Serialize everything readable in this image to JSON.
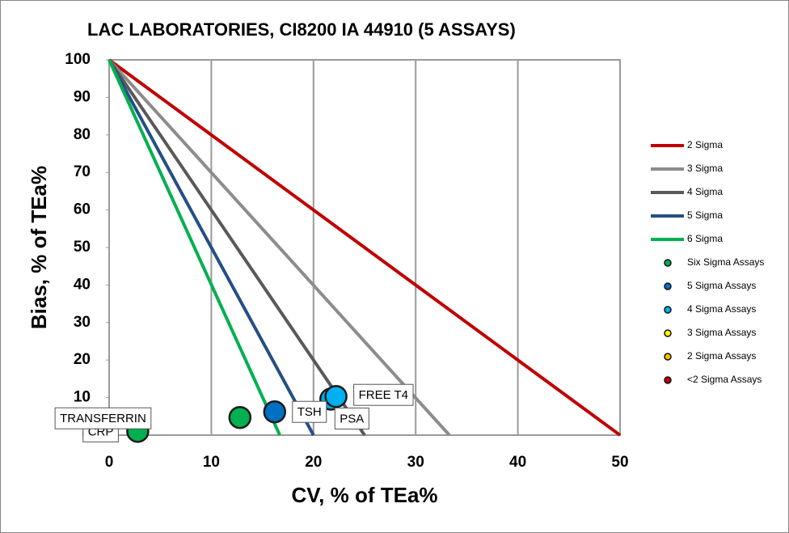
{
  "chart_data": {
    "type": "opspecs",
    "title": "LAC LABORATORIES, CI8200 IA 44910 (5 ASSAYS)",
    "x_label": "CV, % of TEa%",
    "y_label": "Bias, % of TEa%",
    "xlim": [
      0,
      50
    ],
    "xticks": [
      0,
      10,
      20,
      30,
      40,
      50
    ],
    "ylim": [
      0,
      100
    ],
    "yticks": [
      0,
      10,
      20,
      30,
      40,
      50,
      60,
      70,
      80,
      90,
      100
    ],
    "grid": "x",
    "legend": "right",
    "series": [
      {
        "name": "2 Sigma",
        "kind": "line",
        "color": "#c00000",
        "x": [
          0,
          50
        ],
        "values": [
          100,
          0
        ]
      },
      {
        "name": "3 Sigma",
        "kind": "line",
        "color": "#8c8c8c",
        "x": [
          0,
          33.3
        ],
        "values": [
          100,
          0
        ]
      },
      {
        "name": "4 Sigma",
        "kind": "line",
        "color": "#595959",
        "x": [
          0,
          25
        ],
        "values": [
          100,
          0
        ]
      },
      {
        "name": "5 Sigma",
        "kind": "line",
        "color": "#254e85",
        "x": [
          0,
          20
        ],
        "values": [
          100,
          0
        ]
      },
      {
        "name": "6 Sigma",
        "kind": "line",
        "color": "#00b050",
        "x": [
          0,
          16.7
        ],
        "values": [
          100,
          0
        ]
      },
      {
        "name": "Six Sigma Assays",
        "kind": "scatter",
        "color": "#00b050",
        "x": [
          2.8,
          12.8
        ],
        "values": [
          1,
          4.7
        ],
        "labels": [
          "CRP",
          "TRANSFERRIN"
        ]
      },
      {
        "name": "5 Sigma Assays",
        "kind": "scatter",
        "color": "#0070c0",
        "x": [
          16.2
        ],
        "values": [
          6.2
        ],
        "labels": [
          "TSH"
        ]
      },
      {
        "name": "4 Sigma Assays",
        "kind": "scatter",
        "color": "#00b0f0",
        "x": [
          21.7,
          22.2
        ],
        "values": [
          9.6,
          10.3
        ],
        "labels": [
          "PSA",
          "FREE T4"
        ]
      },
      {
        "name": "3 Sigma Assays",
        "kind": "scatter",
        "color": "#ffff00",
        "x": [],
        "values": [],
        "labels": []
      },
      {
        "name": "2 Sigma Assays",
        "kind": "scatter",
        "color": "#ffc000",
        "x": [],
        "values": [],
        "labels": []
      },
      {
        "name": "<2 Sigma Assays",
        "kind": "scatter",
        "color": "#c00000",
        "x": [],
        "values": [],
        "labels": []
      }
    ]
  }
}
